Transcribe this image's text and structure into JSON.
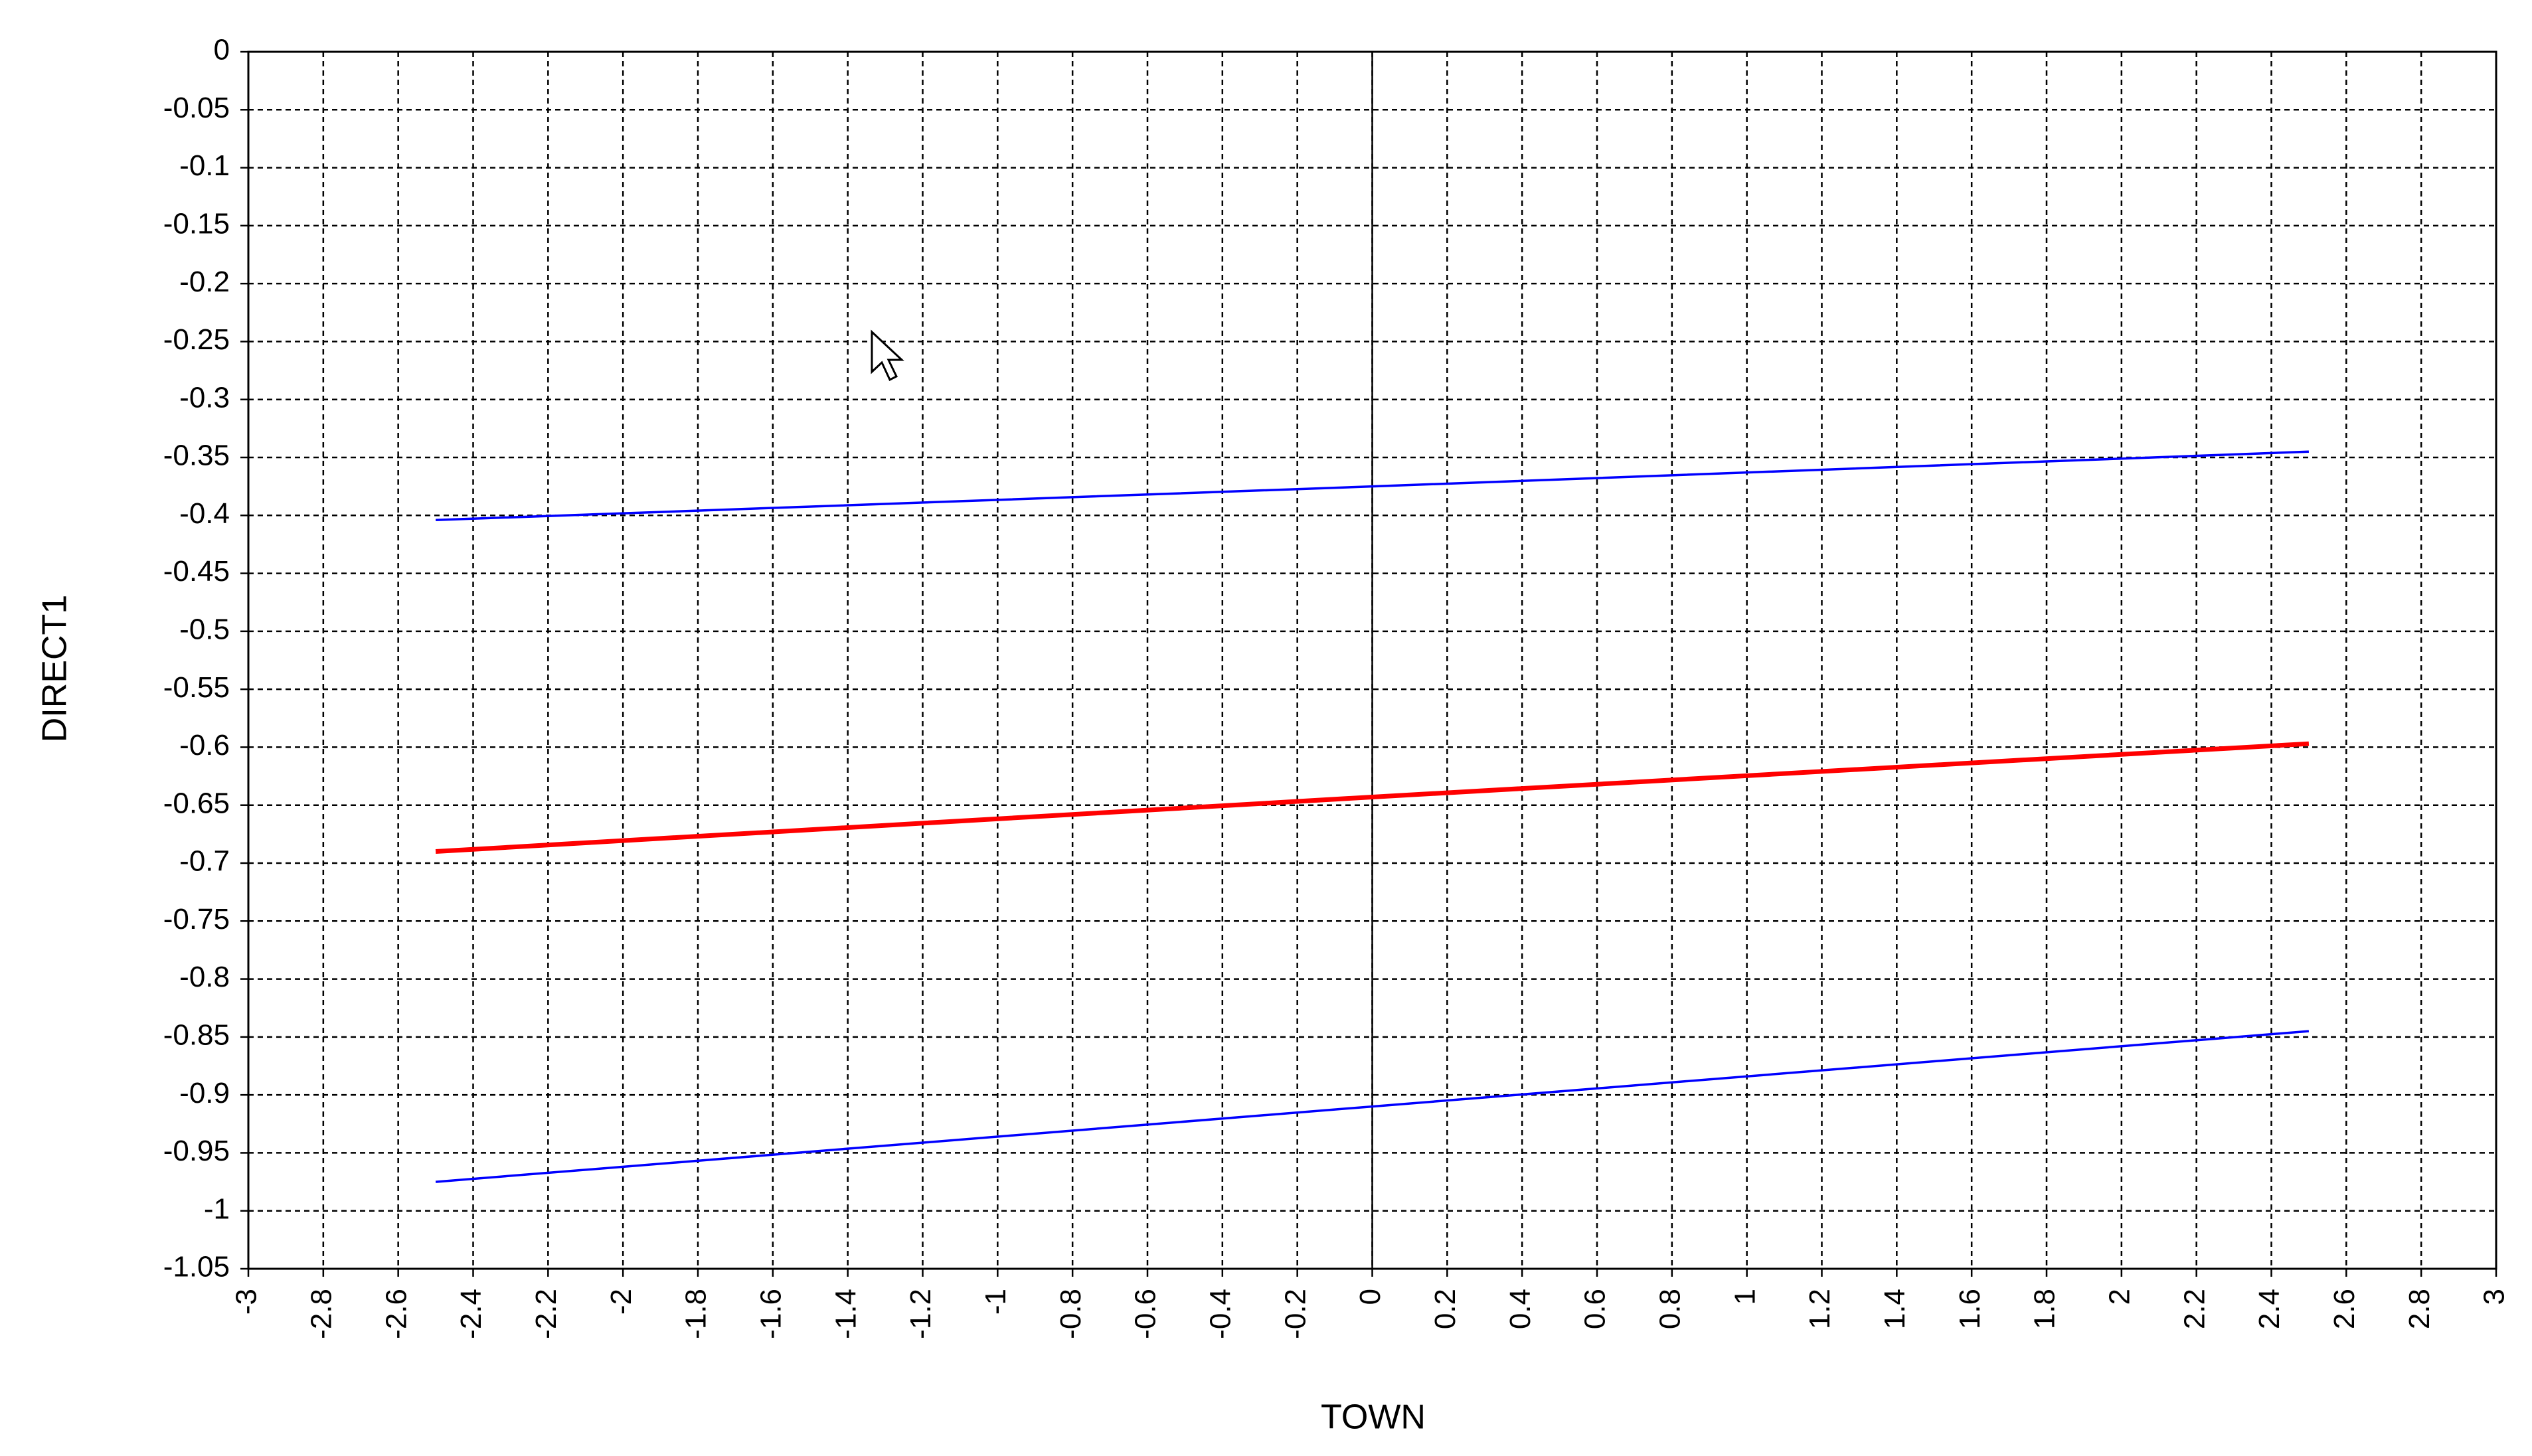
{
  "chart_data": {
    "type": "line",
    "x_label": "TOWN",
    "y_label": "DIRECT1",
    "x": [
      -2.5,
      0,
      2.5
    ],
    "series": [
      {
        "color": "#0000ff",
        "values": [
          -0.404,
          -0.375,
          -0.345
        ]
      },
      {
        "color": "#ff0000",
        "values": [
          -0.69,
          -0.643,
          -0.597
        ]
      },
      {
        "color": "#0000ff",
        "values": [
          -0.975,
          -0.91,
          -0.845
        ]
      }
    ],
    "xlim": [
      -3,
      3
    ],
    "xticks": [
      -3,
      -2.8,
      -2.6,
      -2.4,
      -2.2,
      -2,
      -1.8,
      -1.6,
      -1.4,
      -1.2,
      -1,
      -0.8,
      -0.6,
      -0.4,
      -0.2,
      0,
      0.2,
      0.4,
      0.6,
      0.8,
      1,
      1.2,
      1.4,
      1.6,
      1.8,
      2,
      2.2,
      2.4,
      2.6,
      2.8,
      3
    ],
    "ylim": [
      -1.05,
      0
    ],
    "yticks": [
      0,
      -0.05,
      -0.1,
      -0.15,
      -0.2,
      -0.25,
      -0.3,
      -0.35,
      -0.4,
      -0.45,
      -0.5,
      -0.55,
      -0.6,
      -0.65,
      -0.7,
      -0.75,
      -0.8,
      -0.85,
      -0.9,
      -0.95,
      -1,
      -1.05
    ],
    "grid": true
  }
}
